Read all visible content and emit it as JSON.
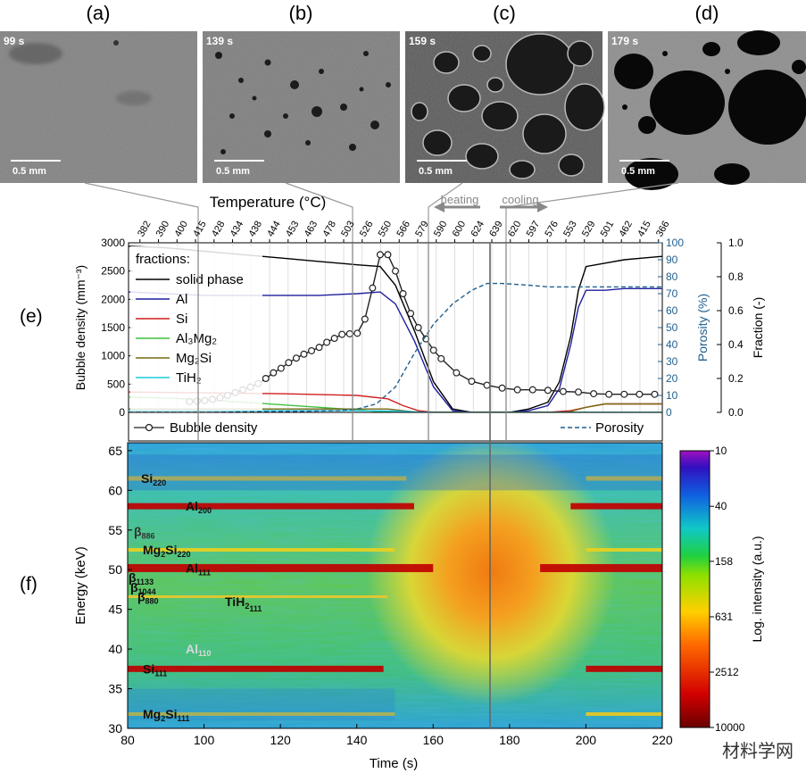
{
  "panels": [
    {
      "letter": "(a)",
      "time": "99 s",
      "scale": "0.5 mm"
    },
    {
      "letter": "(b)",
      "time": "139 s",
      "scale": "0.5 mm"
    },
    {
      "letter": "(c)",
      "time": "159 s",
      "scale": "0.5 mm"
    },
    {
      "letter": "(d)",
      "time": "179 s",
      "scale": "0.5 mm"
    }
  ],
  "label_e": "(e)",
  "label_f": "(f)",
  "watermark": "材料学网",
  "colors": {
    "solid": "#000000",
    "al": "#1f1f9f",
    "si": "#d11f1f",
    "al3mg2": "#3fbf3f",
    "mg2si": "#7a6a10",
    "tih2": "#20c8e0",
    "porosity": "#1f5f8f",
    "bubble": "#222222"
  },
  "chart_data": [
    {
      "type": "line",
      "title": "",
      "temperature_label": "Temperature (°C)",
      "temperature_ticks": [
        "382",
        "390",
        "400",
        "415",
        "428",
        "434",
        "438",
        "444",
        "453",
        "463",
        "478",
        "503",
        "526",
        "550",
        "566",
        "579",
        "590",
        "600",
        "624",
        "639",
        "620",
        "597",
        "576",
        "553",
        "529",
        "501",
        "462",
        "415",
        "366"
      ],
      "heating_label": "heating",
      "cooling_label": "cooling",
      "xlim": [
        80,
        220
      ],
      "ylabel_left": "Bubble density (mm⁻³)",
      "ylim_left": [
        0,
        3000
      ],
      "yticks_left": [
        "0",
        "500",
        "1000",
        "1500",
        "2000",
        "2500",
        "3000"
      ],
      "ylabel_mid": "Porosity (%)",
      "ylim_mid": [
        0,
        100
      ],
      "yticks_mid": [
        "0",
        "10",
        "20",
        "30",
        "40",
        "50",
        "60",
        "70",
        "80",
        "90",
        "100"
      ],
      "ylabel_right": "Fraction (-)",
      "ylim_right": [
        0,
        1
      ],
      "yticks_right": [
        "0.0",
        "0.2",
        "0.4",
        "0.6",
        "0.8",
        "1.0"
      ],
      "legend_title": "fractions:",
      "legend_position": "top-left",
      "series": [
        {
          "name": "solid phase",
          "axis": "fraction",
          "x": [
            80,
            90,
            100,
            110,
            120,
            130,
            140,
            146,
            150,
            155,
            160,
            165,
            170,
            180,
            185,
            190,
            193,
            196,
            198,
            200,
            205,
            210,
            215,
            220
          ],
          "y": [
            0.98,
            0.97,
            0.95,
            0.93,
            0.91,
            0.89,
            0.87,
            0.86,
            0.75,
            0.48,
            0.18,
            0.02,
            0.0,
            0.0,
            0.02,
            0.06,
            0.18,
            0.45,
            0.72,
            0.86,
            0.88,
            0.9,
            0.91,
            0.92
          ]
        },
        {
          "name": "Al",
          "axis": "fraction",
          "x": [
            80,
            90,
            100,
            110,
            120,
            130,
            140,
            146,
            150,
            155,
            160,
            165,
            170,
            180,
            185,
            190,
            193,
            196,
            198,
            200,
            205,
            210,
            215,
            220
          ],
          "y": [
            0.71,
            0.7,
            0.69,
            0.69,
            0.69,
            0.69,
            0.7,
            0.71,
            0.64,
            0.42,
            0.15,
            0.01,
            0.0,
            0.0,
            0.01,
            0.04,
            0.14,
            0.4,
            0.62,
            0.72,
            0.72,
            0.73,
            0.73,
            0.73
          ]
        },
        {
          "name": "Si",
          "axis": "fraction",
          "x": [
            80,
            100,
            120,
            140,
            148,
            152,
            156,
            160,
            190,
            196,
            200,
            205,
            210,
            220
          ],
          "y": [
            0.12,
            0.115,
            0.11,
            0.1,
            0.08,
            0.04,
            0.01,
            0.0,
            0.0,
            0.01,
            0.03,
            0.05,
            0.05,
            0.05
          ]
        },
        {
          "name": "Al₃Mg₂",
          "axis": "fraction",
          "x": [
            80,
            90,
            100,
            110,
            120,
            130,
            140,
            145,
            150,
            220
          ],
          "y": [
            0.09,
            0.085,
            0.075,
            0.06,
            0.045,
            0.03,
            0.015,
            0.005,
            0.0,
            0.0
          ]
        },
        {
          "name": "Mg₂Si",
          "axis": "fraction",
          "x": [
            80,
            100,
            140,
            148,
            152,
            156,
            195,
            200,
            205,
            210,
            220
          ],
          "y": [
            0.02,
            0.02,
            0.02,
            0.02,
            0.01,
            0.0,
            0.0,
            0.03,
            0.05,
            0.05,
            0.05
          ]
        },
        {
          "name": "TiH₂",
          "axis": "fraction",
          "x": [
            80,
            100,
            120,
            140,
            150,
            155,
            160,
            220
          ],
          "y": [
            0.012,
            0.012,
            0.01,
            0.01,
            0.008,
            0.003,
            0.0,
            0.0
          ]
        },
        {
          "name": "Bubble density",
          "axis": "bubble",
          "markers": true,
          "x": [
            96,
            98,
            100,
            102,
            104,
            106,
            108,
            110,
            112,
            114,
            116,
            118,
            120,
            122,
            124,
            126,
            128,
            130,
            132,
            134,
            136,
            138,
            140,
            142,
            144,
            146,
            148,
            150,
            152,
            154,
            156,
            158,
            160,
            162,
            166,
            170,
            174,
            178,
            182,
            186,
            190,
            194,
            198,
            202,
            206,
            210,
            214,
            218
          ],
          "y": [
            190,
            200,
            210,
            230,
            260,
            300,
            350,
            400,
            450,
            510,
            600,
            700,
            780,
            880,
            960,
            1030,
            1090,
            1150,
            1240,
            1310,
            1380,
            1390,
            1400,
            1650,
            2200,
            2790,
            2790,
            2500,
            2100,
            1750,
            1500,
            1300,
            1100,
            950,
            700,
            550,
            480,
            430,
            400,
            400,
            390,
            370,
            360,
            330,
            320,
            320,
            320,
            320
          ]
        },
        {
          "name": "Porosity",
          "axis": "porosity",
          "dashed": true,
          "x": [
            80,
            100,
            120,
            135,
            140,
            145,
            150,
            155,
            160,
            165,
            170,
            174,
            178,
            185,
            190,
            200,
            210,
            220
          ],
          "y": [
            0,
            0,
            0.5,
            1,
            2,
            5,
            15,
            35,
            52,
            64,
            72,
            76,
            76,
            75,
            74,
            74,
            74,
            74
          ]
        }
      ]
    },
    {
      "type": "heatmap",
      "xlabel": "Time (s)",
      "ylabel": "Energy (keV)",
      "xlim": [
        80,
        220
      ],
      "ylim": [
        30,
        66
      ],
      "xticks": [
        "80",
        "100",
        "120",
        "140",
        "160",
        "180",
        "200",
        "220"
      ],
      "yticks": [
        "30",
        "35",
        "40",
        "45",
        "50",
        "55",
        "60",
        "65"
      ],
      "colorbar_label": "Log. intensity (a.u.)",
      "colorbar_ticks": [
        "10",
        "40",
        "158",
        "631",
        "2512",
        "10000"
      ],
      "peaks": [
        {
          "label": "Si",
          "sub": "220",
          "energy": 61.5
        },
        {
          "label": "Al",
          "sub": "200",
          "energy": 58.0
        },
        {
          "label": "β",
          "sub": "886",
          "energy": 54.8
        },
        {
          "label": "Mg",
          "sub": "2",
          "tail": "Si",
          "sub2": "220",
          "energy": 52.5
        },
        {
          "label": "Al",
          "sub": "111",
          "energy": 50.2
        },
        {
          "label": "β",
          "sub": "1133",
          "energy": 49.0
        },
        {
          "label": "β",
          "sub": "1044",
          "energy": 47.8
        },
        {
          "label": "β",
          "sub": "880",
          "energy": 46.6
        },
        {
          "label": "TiH",
          "sub": "2",
          "tail": "",
          "sub2": "111",
          "energy": 46.0
        },
        {
          "label": "Al",
          "sub": "110",
          "energy": 40.0
        },
        {
          "label": "Si",
          "sub": "111",
          "energy": 37.5
        },
        {
          "label": "Mg",
          "sub": "2",
          "tail": "Si",
          "sub2": "111",
          "energy": 31.8
        }
      ]
    }
  ]
}
